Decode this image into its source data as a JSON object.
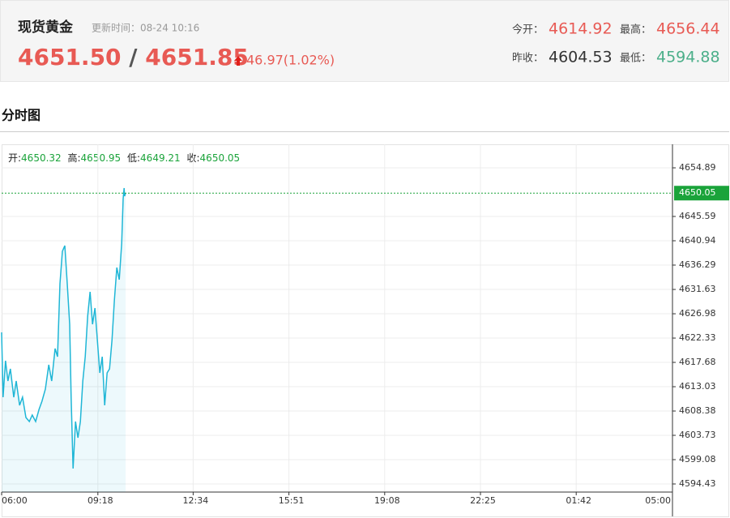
{
  "header": {
    "title": "现货黄金",
    "update_time": "更新时间：08-24 10:16",
    "bid": "4651.50",
    "separator": "/",
    "ask": "4651.85",
    "change": "46.97(1.02%)",
    "stats": [
      {
        "label": "今开：",
        "value": "4614.92"
      },
      {
        "label": "最高：",
        "value": "4656.44"
      },
      {
        "label": "昨收：",
        "value": "4604.53"
      },
      {
        "label": "最低：",
        "value": "4594.88"
      }
    ]
  },
  "section_title": "分时图",
  "chart_data": {
    "type": "line",
    "summary": [
      {
        "label": "开:",
        "value": "4650.32"
      },
      {
        "label": "高:",
        "value": "4650.95"
      },
      {
        "label": "低:",
        "value": "4649.21"
      },
      {
        "label": "收:",
        "value": "4650.05"
      }
    ],
    "x": [
      "06:00",
      "06:03",
      "06:08",
      "06:13",
      "06:18",
      "06:25",
      "06:30",
      "06:37",
      "06:43",
      "06:50",
      "06:57",
      "07:03",
      "07:10",
      "07:17",
      "07:23",
      "07:30",
      "07:37",
      "07:43",
      "07:50",
      "07:55",
      "08:00",
      "08:05",
      "08:10",
      "08:15",
      "08:20",
      "08:23",
      "08:27",
      "08:32",
      "08:37",
      "08:42",
      "08:47",
      "08:52",
      "08:57",
      "09:02",
      "09:07",
      "09:12",
      "09:17",
      "09:22",
      "09:27",
      "09:32",
      "09:37",
      "09:42",
      "09:47",
      "09:52",
      "09:57",
      "10:02",
      "10:07",
      "10:10",
      "10:12",
      "10:13",
      "10:15"
    ],
    "values": [
      4623.42,
      4611.02,
      4618.0,
      4614.12,
      4616.45,
      4611.02,
      4614.12,
      4609.47,
      4611.02,
      4607.14,
      4606.37,
      4607.61,
      4606.37,
      4608.69,
      4610.24,
      4612.57,
      4617.22,
      4614.12,
      4620.32,
      4618.77,
      4632.72,
      4638.93,
      4640.01,
      4632.72,
      4624.97,
      4611.02,
      4597.38,
      4606.37,
      4603.27,
      4606.37,
      4614.12,
      4618.77,
      4626.52,
      4631.17,
      4624.97,
      4628.07,
      4621.87,
      4615.67,
      4618.77,
      4609.47,
      4615.67,
      4616.45,
      4621.87,
      4629.62,
      4635.83,
      4633.5,
      4640.48,
      4649.0,
      4651.02,
      4649.47,
      4650.05
    ],
    "color": "#1fb6d6",
    "last_value": 4650.05,
    "last_color": "#1aa33a",
    "xlim": [
      "06:00",
      "05:00"
    ],
    "xticks": [
      "06:00",
      "09:18",
      "12:34",
      "15:51",
      "19:08",
      "22:25",
      "01:42",
      "05:00"
    ],
    "ylim": [
      4592.88,
      4659.39
    ],
    "yticks": [
      4594.43,
      4599.08,
      4603.73,
      4608.38,
      4613.03,
      4617.68,
      4622.33,
      4626.98,
      4631.63,
      4636.29,
      4640.94,
      4645.59,
      4654.89
    ],
    "grid": true
  }
}
